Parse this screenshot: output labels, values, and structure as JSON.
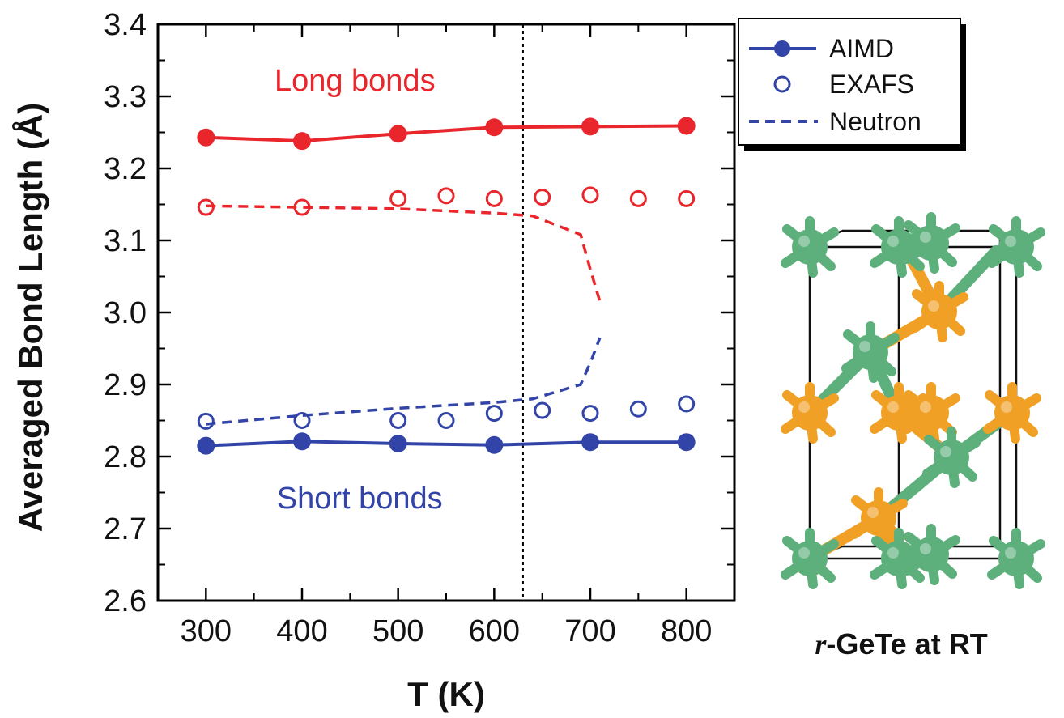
{
  "chart_data": {
    "type": "line",
    "xlabel": "T (K)",
    "ylabel": "Averaged Bond Length (Å)",
    "xlim": [
      250,
      850
    ],
    "ylim": [
      2.6,
      3.4
    ],
    "xticks": [
      "300",
      "400",
      "500",
      "600",
      "700",
      "800"
    ],
    "yticks": [
      "2.6",
      "2.7",
      "2.8",
      "2.9",
      "3.0",
      "3.1",
      "3.2",
      "3.3",
      "3.4"
    ],
    "grid": false,
    "legend_position": "top-right",
    "legend": [
      {
        "label": "AIMD",
        "marker": "filled-circle-line"
      },
      {
        "label": "EXAFS",
        "marker": "open-circle"
      },
      {
        "label": "Neutron",
        "marker": "dashed-line"
      }
    ],
    "series": [
      {
        "group": "long",
        "method": "AIMD",
        "color": "#e8262b",
        "x": [
          300,
          400,
          500,
          600,
          700,
          800
        ],
        "y": [
          3.243,
          3.238,
          3.248,
          3.257,
          3.258,
          3.259
        ]
      },
      {
        "group": "long",
        "method": "EXAFS",
        "color": "#e8262b",
        "x": [
          300,
          400,
          500,
          550,
          600,
          650,
          700,
          750,
          800
        ],
        "y": [
          3.146,
          3.146,
          3.158,
          3.162,
          3.158,
          3.16,
          3.163,
          3.158,
          3.158
        ]
      },
      {
        "group": "long",
        "method": "Neutron",
        "color": "#e8262b",
        "x": [
          300,
          400,
          500,
          600,
          640,
          690,
          700,
          710
        ],
        "y": [
          3.148,
          3.146,
          3.144,
          3.138,
          3.134,
          3.108,
          3.06,
          3.015
        ]
      },
      {
        "group": "short",
        "method": "AIMD",
        "color": "#3244a8",
        "x": [
          300,
          400,
          500,
          600,
          700,
          800
        ],
        "y": [
          2.815,
          2.821,
          2.818,
          2.816,
          2.82,
          2.82
        ]
      },
      {
        "group": "short",
        "method": "EXAFS",
        "color": "#3244a8",
        "x": [
          300,
          400,
          500,
          550,
          600,
          650,
          700,
          750,
          800
        ],
        "y": [
          2.849,
          2.85,
          2.85,
          2.85,
          2.86,
          2.864,
          2.86,
          2.866,
          2.873
        ]
      },
      {
        "group": "short",
        "method": "Neutron",
        "color": "#3244a8",
        "x": [
          300,
          400,
          500,
          600,
          640,
          690,
          700,
          710
        ],
        "y": [
          2.845,
          2.857,
          2.867,
          2.875,
          2.88,
          2.9,
          2.93,
          2.965
        ]
      }
    ],
    "vline": {
      "x": 630,
      "style": "dotted"
    },
    "annotations": [
      {
        "text": "Long bonds",
        "color": "#e8262b",
        "x": 455,
        "y": 3.308
      },
      {
        "text": "Short bonds",
        "color": "#3244a8",
        "x": 460,
        "y": 2.728
      }
    ]
  },
  "structure": {
    "caption_italic": "r",
    "caption_rest": "-GeTe at RT",
    "colors": {
      "ge": "#f0a025",
      "te": "#5db07c",
      "cell": "#111111"
    }
  }
}
